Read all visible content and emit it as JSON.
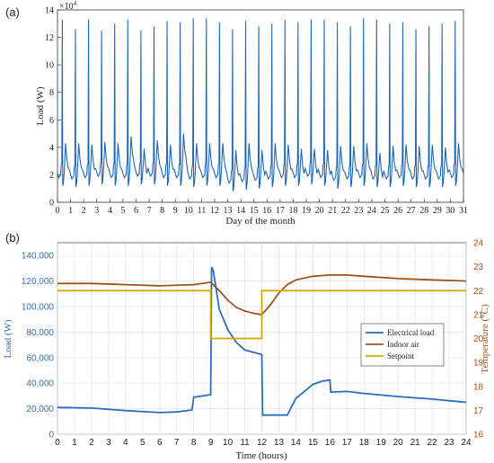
{
  "chart_data": [
    {
      "panel_label": "(a)",
      "type": "line",
      "title": "",
      "xlabel": "Day of the month",
      "ylabel": "Load (W)",
      "y_multiplier_label": "×10",
      "y_multiplier_exp": "4",
      "xlim": [
        0,
        31
      ],
      "ylim": [
        0,
        14
      ],
      "xticks": [
        "0",
        "1",
        "2",
        "3",
        "4",
        "5",
        "6",
        "7",
        "8",
        "9",
        "10",
        "11",
        "12",
        "13",
        "14",
        "15",
        "16",
        "17",
        "18",
        "19",
        "20",
        "21",
        "22",
        "23",
        "24",
        "25",
        "26",
        "27",
        "28",
        "29",
        "30",
        "31"
      ],
      "yticks": [
        "0",
        "2",
        "4",
        "6",
        "8",
        "10",
        "12",
        "14"
      ],
      "grid": false,
      "color": "#1f67b4",
      "series": [
        {
          "daily_peaks": [
            13.3,
            12.6,
            13.3,
            12.5,
            13.0,
            13.3,
            12.5,
            12.8,
            13.2,
            13.1,
            13.4,
            13.4,
            13.1,
            12.6,
            13.2,
            12.8,
            13.0,
            13.3,
            13.1,
            13.3,
            13.3,
            13.1,
            12.8,
            13.4,
            13.3,
            13.0,
            13.1,
            12.6,
            12.8,
            13.0,
            13.2
          ],
          "daily_secondary_peaks": [
            4.3,
            4.3,
            4.2,
            4.4,
            4.3,
            4.8,
            3.9,
            4.5,
            4.2,
            5.0,
            4.3,
            4.3,
            4.3,
            3.8,
            4.3,
            3.8,
            4.3,
            4.2,
            3.9,
            3.9,
            3.8,
            4.1,
            4.1,
            4.3,
            3.6,
            4.1,
            4.2,
            4.1,
            4.2,
            4.0,
            4.3
          ],
          "daily_baseline": [
            1.8,
            1.7,
            1.8,
            1.9,
            1.8,
            1.8,
            1.9,
            1.9,
            1.8,
            1.8,
            1.7,
            1.8,
            1.8,
            1.4,
            1.5,
            1.6,
            1.7,
            1.8,
            1.8,
            1.9,
            1.8,
            1.6,
            1.7,
            1.8,
            1.7,
            1.7,
            1.8,
            1.7,
            1.7,
            1.7,
            1.8
          ]
        }
      ]
    },
    {
      "panel_label": "(b)",
      "type": "line",
      "title": "",
      "xlabel": "Time (hours)",
      "ylabel": "Load (W)",
      "ylabel_right": "Temperature (°C)",
      "xlim": [
        0,
        24
      ],
      "ylim": [
        0,
        150000
      ],
      "ylim_right": [
        16,
        24
      ],
      "xticks": [
        "0",
        "1",
        "2",
        "3",
        "4",
        "5",
        "6",
        "7",
        "8",
        "9",
        "10",
        "11",
        "12",
        "13",
        "14",
        "15",
        "16",
        "17",
        "18",
        "19",
        "20",
        "21",
        "22",
        "23",
        "24"
      ],
      "yticks": [
        "0",
        "20,000",
        "40,000",
        "60,000",
        "80,000",
        "100,000",
        "120,000",
        "140,000"
      ],
      "yticks_right": [
        "16",
        "17",
        "18",
        "19",
        "20",
        "21",
        "22",
        "23",
        "24"
      ],
      "grid": true,
      "legend": "center-right",
      "series": [
        {
          "name": "Electrical load",
          "axis": "left",
          "color": "#2f6bbf",
          "x": [
            0,
            2,
            4,
            6,
            7,
            7.9,
            8.0,
            9.0,
            9.05,
            9.15,
            9.5,
            10,
            10.5,
            11,
            12,
            12.05,
            13.5,
            14,
            15,
            15.5,
            16,
            16.05,
            17,
            18,
            20,
            22,
            24
          ],
          "y": [
            21000,
            20500,
            18500,
            17000,
            17500,
            19000,
            29000,
            31000,
            131000,
            128000,
            98000,
            82000,
            72000,
            66000,
            62500,
            15000,
            15000,
            28000,
            39000,
            41500,
            42500,
            33000,
            33500,
            32000,
            29500,
            27500,
            25000
          ]
        },
        {
          "name": "Indoor air",
          "axis": "right",
          "color": "#a0521e",
          "x": [
            0,
            2,
            4,
            6,
            8,
            9.0,
            9.5,
            10,
            10.5,
            11,
            11.5,
            12,
            12.5,
            13,
            13.5,
            14,
            15,
            16,
            17,
            18,
            20,
            22,
            24
          ],
          "y": [
            22.3,
            22.3,
            22.25,
            22.2,
            22.25,
            22.35,
            22.0,
            21.6,
            21.3,
            21.15,
            21.05,
            21.0,
            21.4,
            21.9,
            22.25,
            22.45,
            22.6,
            22.65,
            22.65,
            22.6,
            22.5,
            22.45,
            22.4
          ]
        },
        {
          "name": "Setpoint",
          "axis": "right",
          "color": "#d9a800",
          "x": [
            0,
            9.0,
            9.0,
            12.0,
            12.0,
            24
          ],
          "y": [
            22,
            22,
            20,
            20,
            22,
            22
          ]
        }
      ]
    }
  ]
}
